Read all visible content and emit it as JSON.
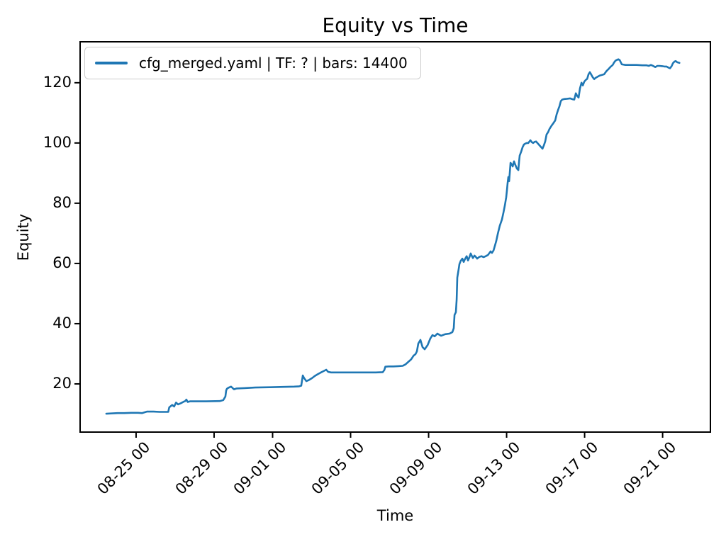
{
  "window": {
    "background": "#ffffff"
  },
  "chart_data": {
    "type": "line",
    "title": "Equity vs Time",
    "xlabel": "Time",
    "ylabel": "Equity",
    "grid": false,
    "legend_position": "upper left",
    "axis_color": "#000000",
    "x_unit": "days since 08-25 00:00",
    "xlim": [
      -2.87,
      29.45
    ],
    "ylim": [
      4.0,
      133.6
    ],
    "y_ticks": [
      20,
      40,
      60,
      80,
      100,
      120
    ],
    "x_ticks": [
      {
        "t": 0,
        "label": "08-25 00"
      },
      {
        "t": 4,
        "label": "08-29 00"
      },
      {
        "t": 7,
        "label": "09-01 00"
      },
      {
        "t": 11,
        "label": "09-05 00"
      },
      {
        "t": 15,
        "label": "09-09 00"
      },
      {
        "t": 19,
        "label": "09-13 00"
      },
      {
        "t": 23,
        "label": "09-17 00"
      },
      {
        "t": 27,
        "label": "09-21 00"
      }
    ],
    "series": [
      {
        "name": "cfg_merged.yaml | TF: ? | bars: 14400",
        "color": "#1f77b4",
        "points": [
          [
            -1.53,
            10.1
          ],
          [
            -1.2,
            10.2
          ],
          [
            -0.95,
            10.3
          ],
          [
            -0.6,
            10.3
          ],
          [
            -0.25,
            10.4
          ],
          [
            0.1,
            10.4
          ],
          [
            0.3,
            10.3
          ],
          [
            0.55,
            10.8
          ],
          [
            0.9,
            10.8
          ],
          [
            1.2,
            10.7
          ],
          [
            1.55,
            10.7
          ],
          [
            1.65,
            10.7
          ],
          [
            1.7,
            12.2
          ],
          [
            1.85,
            13.0
          ],
          [
            1.95,
            12.5
          ],
          [
            2.05,
            13.8
          ],
          [
            2.15,
            13.2
          ],
          [
            2.3,
            13.6
          ],
          [
            2.44,
            14.1
          ],
          [
            2.52,
            14.3
          ],
          [
            2.58,
            14.8
          ],
          [
            2.65,
            14.0
          ],
          [
            2.76,
            14.2
          ],
          [
            2.91,
            14.2
          ],
          [
            3.6,
            14.2
          ],
          [
            4.29,
            14.3
          ],
          [
            4.47,
            14.6
          ],
          [
            4.58,
            15.8
          ],
          [
            4.62,
            17.8
          ],
          [
            4.66,
            18.4
          ],
          [
            4.73,
            18.7
          ],
          [
            4.87,
            19.1
          ],
          [
            5.02,
            18.2
          ],
          [
            5.16,
            18.5
          ],
          [
            5.56,
            18.6
          ],
          [
            6.11,
            18.8
          ],
          [
            6.84,
            18.9
          ],
          [
            7.56,
            19.0
          ],
          [
            8.11,
            19.1
          ],
          [
            8.36,
            19.2
          ],
          [
            8.47,
            19.4
          ],
          [
            8.55,
            22.8
          ],
          [
            8.62,
            21.9
          ],
          [
            8.73,
            20.9
          ],
          [
            8.87,
            21.3
          ],
          [
            9.02,
            21.9
          ],
          [
            9.16,
            22.6
          ],
          [
            9.31,
            23.2
          ],
          [
            9.45,
            23.7
          ],
          [
            9.6,
            24.2
          ],
          [
            9.75,
            24.7
          ],
          [
            9.85,
            24.0
          ],
          [
            10.0,
            23.8
          ],
          [
            10.8,
            23.8
          ],
          [
            11.6,
            23.8
          ],
          [
            12.29,
            23.8
          ],
          [
            12.65,
            23.9
          ],
          [
            12.73,
            24.6
          ],
          [
            12.78,
            25.7
          ],
          [
            12.95,
            25.8
          ],
          [
            13.2,
            25.8
          ],
          [
            13.45,
            25.9
          ],
          [
            13.67,
            26.0
          ],
          [
            13.82,
            26.5
          ],
          [
            13.96,
            27.3
          ],
          [
            14.11,
            28.2
          ],
          [
            14.22,
            29.3
          ],
          [
            14.33,
            29.9
          ],
          [
            14.4,
            30.8
          ],
          [
            14.47,
            33.4
          ],
          [
            14.58,
            34.6
          ],
          [
            14.69,
            32.2
          ],
          [
            14.8,
            31.5
          ],
          [
            14.95,
            32.9
          ],
          [
            15.09,
            35.1
          ],
          [
            15.2,
            36.2
          ],
          [
            15.31,
            35.8
          ],
          [
            15.45,
            36.7
          ],
          [
            15.64,
            36.0
          ],
          [
            15.85,
            36.5
          ],
          [
            16.07,
            36.7
          ],
          [
            16.22,
            37.2
          ],
          [
            16.29,
            38.5
          ],
          [
            16.33,
            42.9
          ],
          [
            16.4,
            43.8
          ],
          [
            16.44,
            48.0
          ],
          [
            16.47,
            55.3
          ],
          [
            16.55,
            58.5
          ],
          [
            16.58,
            59.8
          ],
          [
            16.65,
            60.9
          ],
          [
            16.73,
            61.6
          ],
          [
            16.8,
            60.5
          ],
          [
            16.87,
            61.5
          ],
          [
            16.95,
            62.4
          ],
          [
            17.02,
            61.0
          ],
          [
            17.09,
            62.0
          ],
          [
            17.16,
            63.3
          ],
          [
            17.27,
            61.8
          ],
          [
            17.35,
            62.6
          ],
          [
            17.42,
            62.2
          ],
          [
            17.49,
            61.6
          ],
          [
            17.6,
            62.2
          ],
          [
            17.71,
            62.4
          ],
          [
            17.82,
            62.1
          ],
          [
            17.93,
            62.4
          ],
          [
            18.04,
            62.8
          ],
          [
            18.11,
            63.4
          ],
          [
            18.18,
            64.0
          ],
          [
            18.25,
            63.5
          ],
          [
            18.33,
            64.3
          ],
          [
            18.4,
            65.9
          ],
          [
            18.47,
            67.5
          ],
          [
            18.55,
            69.9
          ],
          [
            18.65,
            72.5
          ],
          [
            18.76,
            74.6
          ],
          [
            18.84,
            77.0
          ],
          [
            18.91,
            79.3
          ],
          [
            18.98,
            82.0
          ],
          [
            19.02,
            84.5
          ],
          [
            19.05,
            86.5
          ],
          [
            19.09,
            88.7
          ],
          [
            19.13,
            87.3
          ],
          [
            19.16,
            90.0
          ],
          [
            19.2,
            93.4
          ],
          [
            19.27,
            92.8
          ],
          [
            19.31,
            92.2
          ],
          [
            19.38,
            93.9
          ],
          [
            19.45,
            92.7
          ],
          [
            19.53,
            91.5
          ],
          [
            19.6,
            91.0
          ],
          [
            19.64,
            94.0
          ],
          [
            19.67,
            95.8
          ],
          [
            19.75,
            97.2
          ],
          [
            19.82,
            98.6
          ],
          [
            19.89,
            99.5
          ],
          [
            19.96,
            99.8
          ],
          [
            20.04,
            100.0
          ],
          [
            20.11,
            100.0
          ],
          [
            20.22,
            100.9
          ],
          [
            20.29,
            100.3
          ],
          [
            20.36,
            100.0
          ],
          [
            20.44,
            100.4
          ],
          [
            20.51,
            100.5
          ],
          [
            20.58,
            100.0
          ],
          [
            20.65,
            99.5
          ],
          [
            20.73,
            98.9
          ],
          [
            20.84,
            98.1
          ],
          [
            20.91,
            99.2
          ],
          [
            20.98,
            100.5
          ],
          [
            21.05,
            102.8
          ],
          [
            21.13,
            103.6
          ],
          [
            21.2,
            104.7
          ],
          [
            21.31,
            105.8
          ],
          [
            21.38,
            106.4
          ],
          [
            21.49,
            107.5
          ],
          [
            21.56,
            109.4
          ],
          [
            21.64,
            111.0
          ],
          [
            21.71,
            112.2
          ],
          [
            21.78,
            113.9
          ],
          [
            21.85,
            114.4
          ],
          [
            21.96,
            114.6
          ],
          [
            22.11,
            114.7
          ],
          [
            22.25,
            114.8
          ],
          [
            22.4,
            114.5
          ],
          [
            22.47,
            114.4
          ],
          [
            22.55,
            116.5
          ],
          [
            22.62,
            115.6
          ],
          [
            22.69,
            115.1
          ],
          [
            22.76,
            118.1
          ],
          [
            22.84,
            120.0
          ],
          [
            22.91,
            119.1
          ],
          [
            22.98,
            120.3
          ],
          [
            23.05,
            120.9
          ],
          [
            23.13,
            121.3
          ],
          [
            23.2,
            122.8
          ],
          [
            23.27,
            123.5
          ],
          [
            23.35,
            122.6
          ],
          [
            23.42,
            121.8
          ],
          [
            23.49,
            121.2
          ],
          [
            23.56,
            121.6
          ],
          [
            23.67,
            122.0
          ],
          [
            23.78,
            122.4
          ],
          [
            23.89,
            122.6
          ],
          [
            24.0,
            122.8
          ],
          [
            24.11,
            123.8
          ],
          [
            24.22,
            124.5
          ],
          [
            24.33,
            125.3
          ],
          [
            24.44,
            125.9
          ],
          [
            24.51,
            126.7
          ],
          [
            24.58,
            127.3
          ],
          [
            24.66,
            127.6
          ],
          [
            24.73,
            127.8
          ],
          [
            24.8,
            127.5
          ],
          [
            24.91,
            126.1
          ],
          [
            25.09,
            125.9
          ],
          [
            25.38,
            125.9
          ],
          [
            25.67,
            125.9
          ],
          [
            25.96,
            125.8
          ],
          [
            26.18,
            125.8
          ],
          [
            26.29,
            125.6
          ],
          [
            26.4,
            125.9
          ],
          [
            26.51,
            125.6
          ],
          [
            26.62,
            125.2
          ],
          [
            26.73,
            125.6
          ],
          [
            26.84,
            125.6
          ],
          [
            26.98,
            125.5
          ],
          [
            27.09,
            125.4
          ],
          [
            27.2,
            125.4
          ],
          [
            27.31,
            125.0
          ],
          [
            27.38,
            124.8
          ],
          [
            27.46,
            125.5
          ],
          [
            27.53,
            126.5
          ],
          [
            27.6,
            127.0
          ],
          [
            27.67,
            127.2
          ],
          [
            27.75,
            126.8
          ],
          [
            27.86,
            126.6
          ]
        ]
      }
    ]
  }
}
